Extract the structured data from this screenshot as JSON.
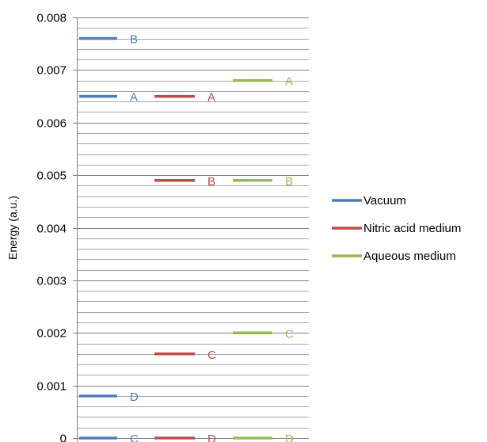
{
  "chart_data": {
    "type": "line",
    "ylabel": "Energy (a.u.)",
    "ylim": [
      0,
      0.008
    ],
    "yticks": [
      "0",
      "0.001",
      "0.002",
      "0.003",
      "0.004",
      "0.005",
      "0.006",
      "0.007",
      "0.008"
    ],
    "minor_gridlines_per_major": 5,
    "grid": true,
    "legend_position": "right",
    "series": [
      {
        "name": "Vacuum",
        "color": "#4a7ebb",
        "levels": [
          {
            "label": "B",
            "value": 0.0076
          },
          {
            "label": "A",
            "value": 0.0065
          },
          {
            "label": "D",
            "value": 0.0008
          },
          {
            "label": "C",
            "value": 0.0
          }
        ]
      },
      {
        "name": "Nitric acid medium",
        "color": "#be4b48",
        "levels": [
          {
            "label": "A",
            "value": 0.0065
          },
          {
            "label": "B",
            "value": 0.0049
          },
          {
            "label": "C",
            "value": 0.0016
          },
          {
            "label": "D",
            "value": 0.0
          }
        ]
      },
      {
        "name": "Aqueous medium",
        "color": "#98b954",
        "levels": [
          {
            "label": "A",
            "value": 0.0068
          },
          {
            "label": "B",
            "value": 0.0049
          },
          {
            "label": "C",
            "value": 0.002
          },
          {
            "label": "D",
            "value": 0.0
          }
        ]
      }
    ]
  }
}
